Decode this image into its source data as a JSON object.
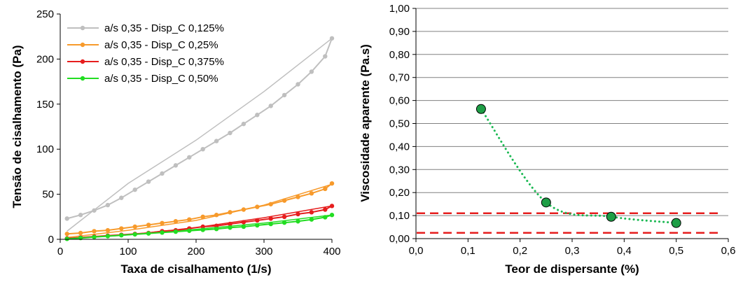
{
  "chart_data": [
    {
      "type": "line",
      "xlabel": "Taxa de cisalhamento (1/s)",
      "ylabel": "Tensão de cisalhamento (Pa)",
      "xlim": [
        0,
        400
      ],
      "ylim": [
        0,
        250
      ],
      "xticks": [
        "0",
        "100",
        "200",
        "300",
        "400"
      ],
      "yticks": [
        "0",
        "50",
        "100",
        "150",
        "200",
        "250"
      ],
      "grid": false,
      "legend_position": "top-left",
      "x": [
        10,
        30,
        50,
        70,
        90,
        110,
        130,
        150,
        170,
        190,
        210,
        230,
        250,
        270,
        290,
        310,
        330,
        350,
        370,
        390,
        400
      ],
      "series": [
        {
          "name": "a/s 0,35 - Disp_C 0,125%",
          "color": "#bfbfbf",
          "values": [
            23,
            27,
            32,
            38,
            46,
            55,
            64,
            73,
            82,
            91,
            100,
            109,
            118,
            128,
            138,
            148,
            160,
            172,
            186,
            203,
            223
          ],
          "fit": [
            [
              10,
              9
            ],
            [
              100,
              62
            ],
            [
              200,
              110
            ],
            [
              300,
              164
            ],
            [
              400,
              223
            ]
          ]
        },
        {
          "name": "a/s 0,35 - Disp_C 0,25%",
          "color": "#f79a2b",
          "values": [
            6,
            7,
            9,
            10,
            12,
            14,
            16,
            18,
            20,
            22,
            25,
            27,
            30,
            33,
            36,
            39,
            43,
            47,
            51,
            56,
            62
          ],
          "fit": [
            [
              10,
              2
            ],
            [
              100,
              10
            ],
            [
              200,
              21
            ],
            [
              300,
              38
            ],
            [
              400,
              61
            ]
          ]
        },
        {
          "name": "a/s 0,35 - Disp_C 0,375%",
          "color": "#e61e1e",
          "values": [
            1,
            2,
            3,
            4,
            5,
            6,
            7,
            9,
            10,
            12,
            14,
            15,
            17,
            19,
            21,
            23,
            25,
            28,
            30,
            33,
            37
          ],
          "fit": [
            [
              10,
              1
            ],
            [
              100,
              5
            ],
            [
              200,
              13
            ],
            [
              300,
              24
            ],
            [
              400,
              37
            ]
          ]
        },
        {
          "name": "a/s 0,35 - Disp_C 0,50%",
          "color": "#22dd22",
          "values": [
            0.5,
            1.5,
            2.5,
            3.5,
            4.5,
            5.5,
            6.5,
            7.5,
            8.5,
            9.5,
            10.5,
            11.5,
            13,
            14,
            15.5,
            17,
            18.5,
            20,
            22,
            24.5,
            27
          ],
          "fit": [
            [
              10,
              0.5
            ],
            [
              100,
              5
            ],
            [
              200,
              11
            ],
            [
              300,
              18
            ],
            [
              400,
              27
            ]
          ]
        }
      ]
    },
    {
      "type": "scatter",
      "xlabel": "Teor de dispersante (%)",
      "ylabel": "Viscosidade aparente (Pa.s)",
      "xlim": [
        0,
        0.6
      ],
      "ylim": [
        0,
        1.0
      ],
      "xticks": [
        "0,0",
        "0,1",
        "0,2",
        "0,3",
        "0,4",
        "0,5",
        "0,6"
      ],
      "yticks": [
        "0,00",
        "0,10",
        "0,20",
        "0,30",
        "0,40",
        "0,50",
        "0,60",
        "0,70",
        "0,80",
        "0,90",
        "1,00"
      ],
      "grid": true,
      "grid_color": "#808080",
      "point_color": "#1e9e46",
      "trend_color": "#1db954",
      "x": [
        0.125,
        0.25,
        0.375,
        0.5
      ],
      "y": [
        0.563,
        0.157,
        0.095,
        0.068
      ],
      "reference_lines": [
        {
          "y": 0.11,
          "color": "#e61e1e"
        },
        {
          "y": 0.025,
          "color": "#e61e1e"
        }
      ]
    }
  ]
}
